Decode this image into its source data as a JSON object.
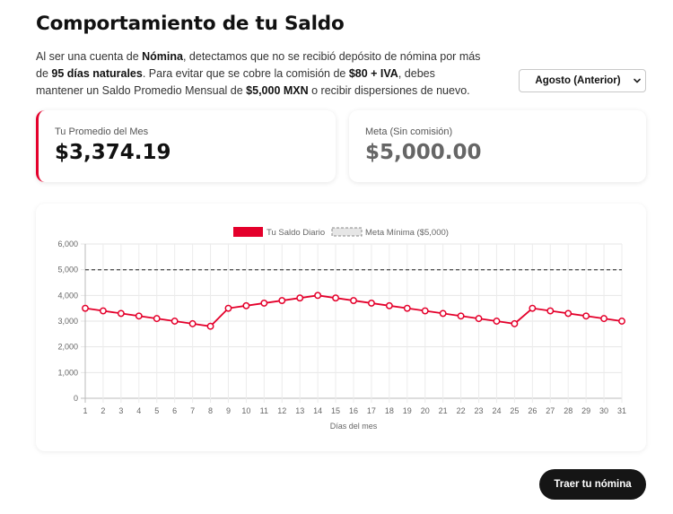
{
  "page": {
    "title": "Comportamiento de tu Saldo",
    "description": {
      "p1": "Al ser una cuenta de ",
      "b1": "Nómina",
      "p2": ", detectamos que no se recibió depósito de nómina por más de ",
      "b2": "95 días naturales",
      "p3": ". Para evitar que se cobre la comisión de ",
      "b3": "$80 + IVA",
      "p4": ", debes mantener un Saldo Promedio Mensual de ",
      "b4": "$5,000 MXN",
      "p5": " o recibir dispersiones de nuevo."
    }
  },
  "period_select": {
    "selected": "Agosto (Anterior)",
    "icon": "chevron-down-icon"
  },
  "cards": {
    "average": {
      "label": "Tu Promedio del Mes",
      "value": "$3,374.19"
    },
    "goal": {
      "label": "Meta (Sin comisión)",
      "value": "$5,000.00"
    }
  },
  "colors": {
    "accent": "#e4002b",
    "goal_line": "#555555",
    "button": "#151515"
  },
  "chart_data": {
    "type": "line",
    "x": [
      1,
      2,
      3,
      4,
      5,
      6,
      7,
      8,
      9,
      10,
      11,
      12,
      13,
      14,
      15,
      16,
      17,
      18,
      19,
      20,
      21,
      22,
      23,
      24,
      25,
      26,
      27,
      28,
      29,
      30,
      31
    ],
    "series": [
      {
        "name": "Tu Saldo Diario",
        "values": [
          3500,
          3400,
          3300,
          3200,
          3100,
          3000,
          2900,
          2800,
          3500,
          3600,
          3700,
          3800,
          3900,
          4000,
          3900,
          3800,
          3700,
          3600,
          3500,
          3400,
          3300,
          3200,
          3100,
          3000,
          2900,
          3500,
          3400,
          3300,
          3200,
          3100,
          3000
        ]
      },
      {
        "name": "Meta Mínima ($5,000)",
        "values": [
          5000,
          5000,
          5000,
          5000,
          5000,
          5000,
          5000,
          5000,
          5000,
          5000,
          5000,
          5000,
          5000,
          5000,
          5000,
          5000,
          5000,
          5000,
          5000,
          5000,
          5000,
          5000,
          5000,
          5000,
          5000,
          5000,
          5000,
          5000,
          5000,
          5000,
          5000
        ],
        "style": "dashed"
      }
    ],
    "xlabel": "Días del mes",
    "ylabel": "",
    "ylim": [
      0,
      6000
    ],
    "yticks": [
      "0",
      "1,000",
      "2,000",
      "3,000",
      "4,000",
      "5,000",
      "6,000"
    ],
    "grid": true,
    "legend": "top-center"
  },
  "cta": {
    "label": "Traer tu nómina"
  }
}
